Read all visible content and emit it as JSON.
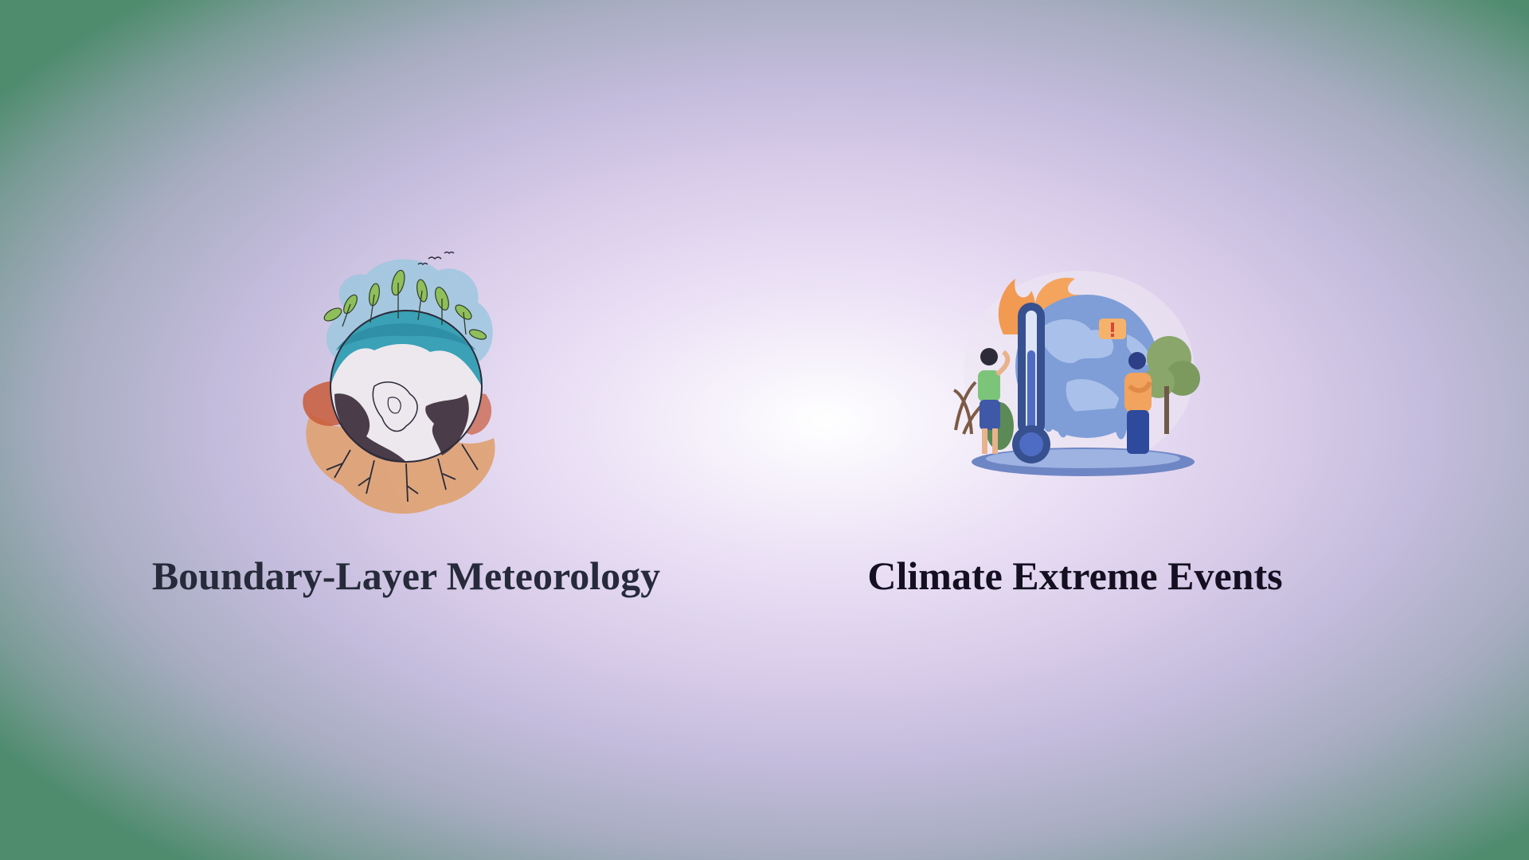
{
  "slide": {
    "cards": [
      {
        "title": "Boundary-Layer Meteorology",
        "icon": "earth-ecology-illustration",
        "title_color": "#262a3a"
      },
      {
        "title": "Climate Extreme Events",
        "icon": "global-warming-illustration",
        "title_color": "#141021"
      }
    ]
  },
  "colors": {
    "background_center": "#ffffff",
    "background_mid": "#d9cdea",
    "background_edge": "#4f8c6e"
  }
}
